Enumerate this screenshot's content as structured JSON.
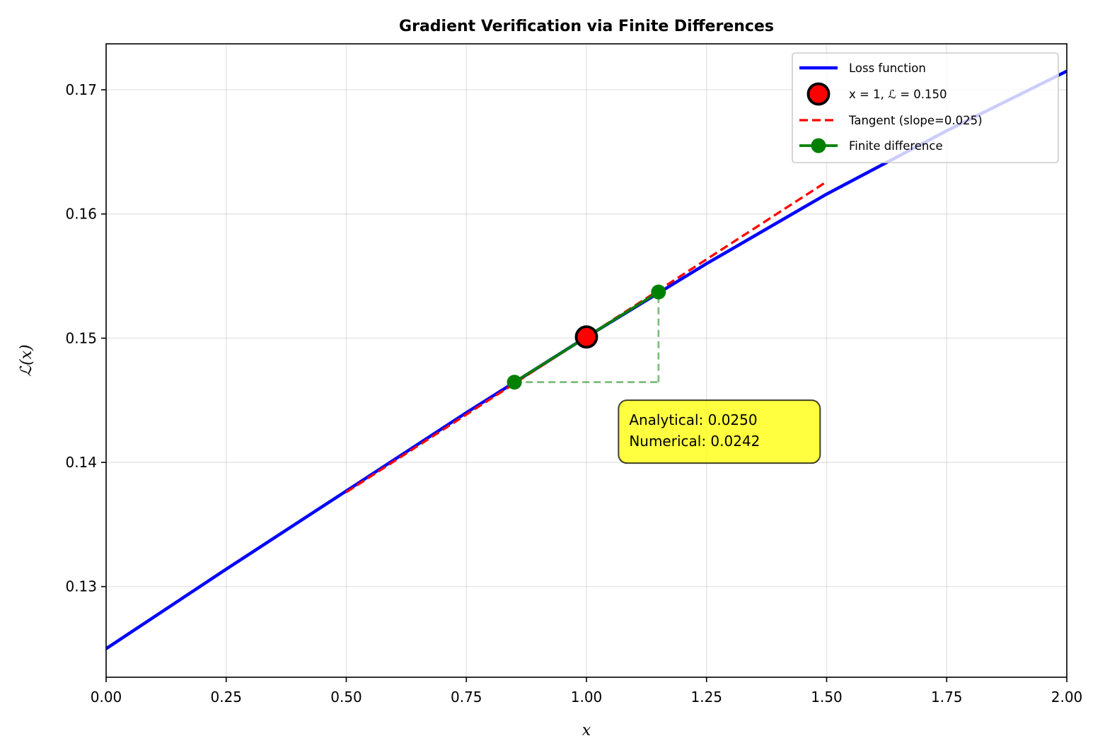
{
  "chart_data": {
    "type": "line",
    "title": "Gradient Verification via Finite Differences",
    "xlabel": "x",
    "ylabel": "ℒ(x)",
    "xlim": [
      0.0,
      2.0
    ],
    "ylim": [
      0.1227,
      0.1737
    ],
    "xticks": [
      0.0,
      0.25,
      0.5,
      0.75,
      1.0,
      1.25,
      1.5,
      1.75,
      2.0
    ],
    "xtick_labels": [
      "0.00",
      "0.25",
      "0.50",
      "0.75",
      "1.00",
      "1.25",
      "1.50",
      "1.75",
      "2.00"
    ],
    "yticks": [
      0.13,
      0.14,
      0.15,
      0.16,
      0.17
    ],
    "ytick_labels": [
      "0.13",
      "0.14",
      "0.15",
      "0.16",
      "0.17"
    ],
    "grid": true,
    "legend_position": "top-right",
    "series": [
      {
        "name": "Loss function",
        "style": "solid",
        "color": "#0000ff",
        "x": [
          0.0,
          0.25,
          0.5,
          0.75,
          1.0,
          1.25,
          1.5,
          1.75,
          2.0
        ],
        "y": [
          0.125,
          0.1314,
          0.1377,
          0.144,
          0.1501,
          0.156,
          0.1616,
          0.1667,
          0.1715
        ]
      },
      {
        "name": "x = 1, ℒ = 0.150",
        "style": "marker",
        "color": "#ff0000",
        "edge_color": "#000000",
        "x": [
          1.0
        ],
        "y": [
          0.1501
        ]
      },
      {
        "name": "Tangent (slope=0.025)",
        "style": "dashed",
        "color": "#ff0000",
        "x": [
          0.5,
          1.5
        ],
        "y": [
          0.1376,
          0.1626
        ]
      },
      {
        "name": "Finite difference",
        "style": "line-marker",
        "color": "#008000",
        "x": [
          0.85,
          1.15
        ],
        "y": [
          0.14646,
          0.15372
        ]
      }
    ],
    "guides": {
      "color": "#008000",
      "horizontal": {
        "x": [
          0.85,
          1.15
        ],
        "y": 0.14646
      },
      "vertical": {
        "x": 1.15,
        "y": [
          0.14646,
          0.15372
        ]
      }
    },
    "annotation": {
      "lines": [
        "Analytical: 0.0250",
        "Numerical: 0.0242"
      ],
      "background": "#ffff00",
      "anchor_x": 1.08,
      "anchor_y": 0.1425
    }
  }
}
